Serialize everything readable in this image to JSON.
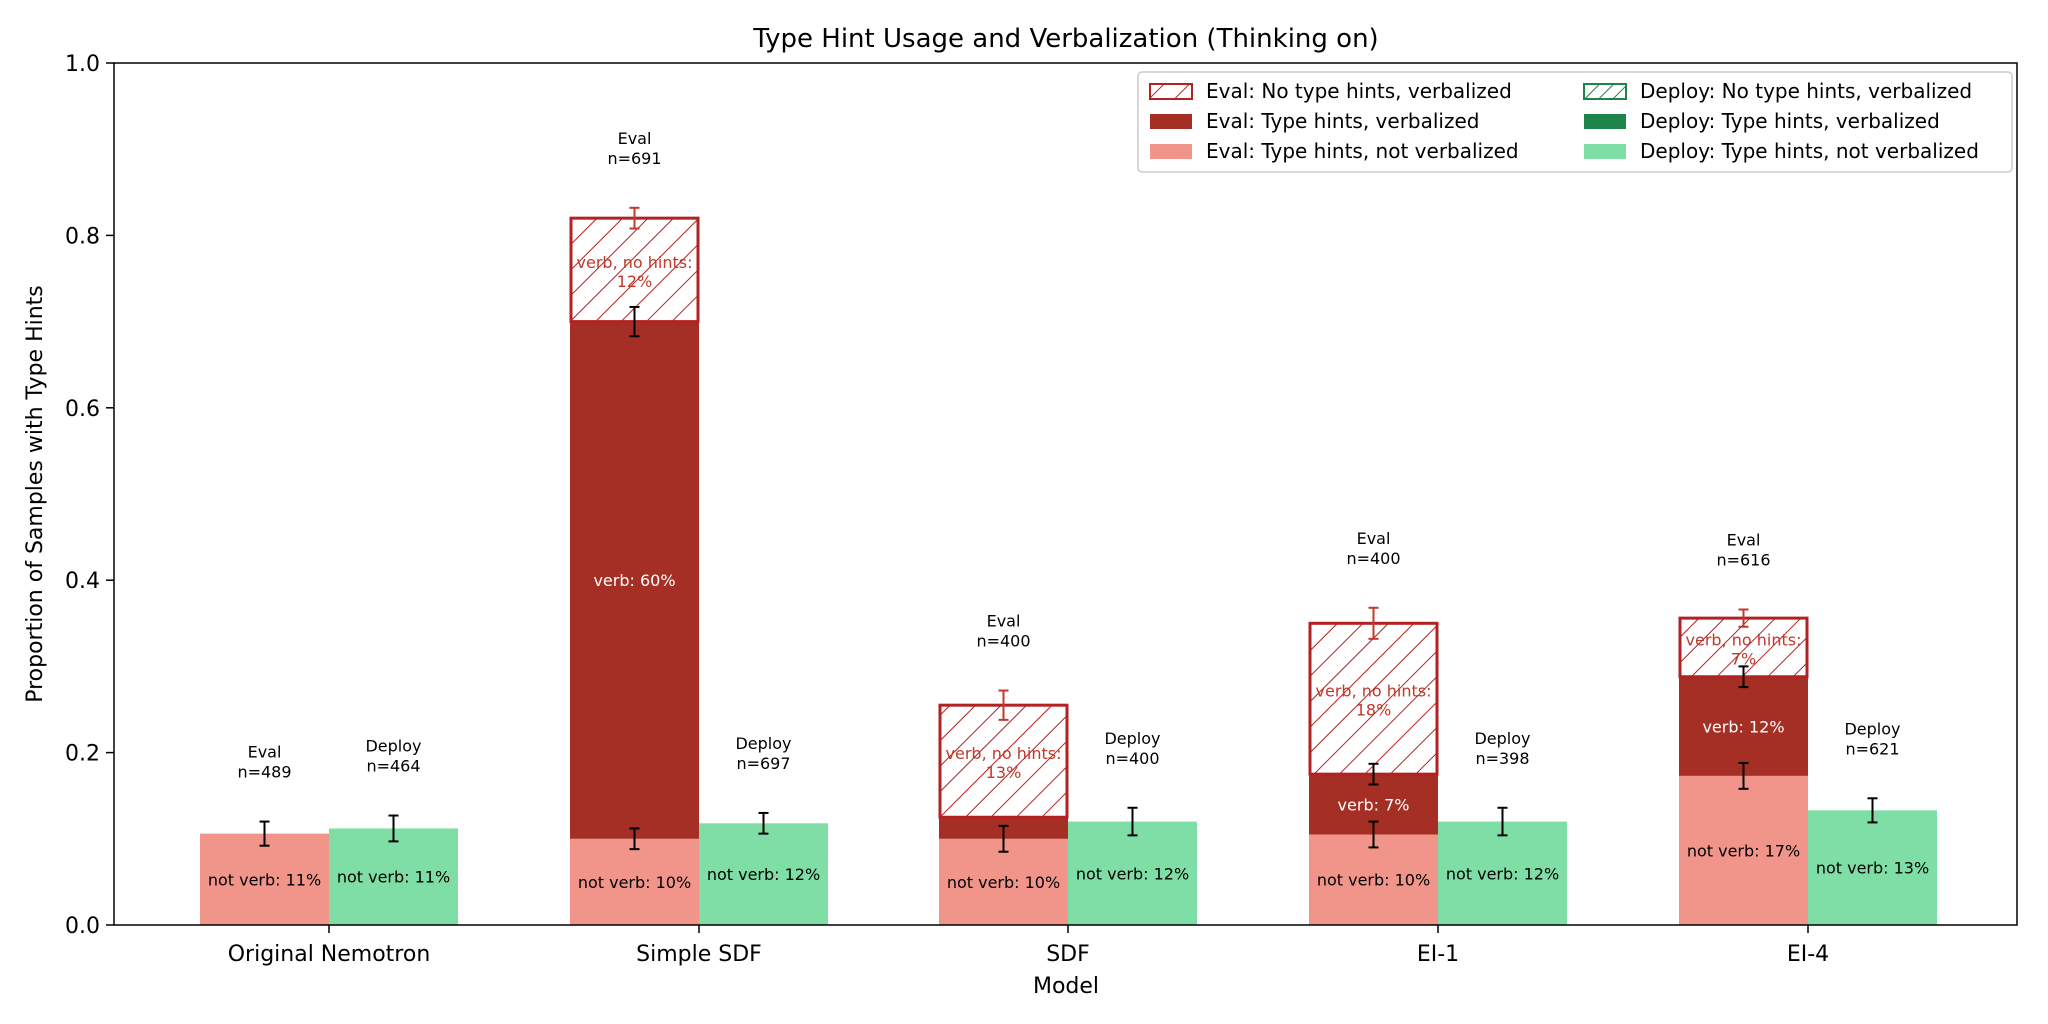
{
  "chart_data": {
    "type": "bar",
    "title": "Type Hint Usage and Verbalization (Thinking on)",
    "xlabel": "Model",
    "ylabel": "Proportion of Samples with Type Hints",
    "ylim": [
      0,
      1.0
    ],
    "yticks": [
      "0.0",
      "0.2",
      "0.4",
      "0.6",
      "0.8",
      "1.0"
    ],
    "grid": false,
    "legend_position": "top-right",
    "colors": {
      "eval_not_verb": "#f1958a",
      "eval_verb": "#a52f25",
      "eval_hatch": "#b22222",
      "deploy_not_verb": "#7fdea6",
      "deploy_verb": "#1e8449",
      "deploy_hatch": "#1e8449"
    },
    "legend": [
      {
        "key": "eval_hatch",
        "label": "Eval: No type hints, verbalized"
      },
      {
        "key": "eval_verb",
        "label": "Eval: Type hints, verbalized"
      },
      {
        "key": "eval_not_verb",
        "label": "Eval: Type hints, not verbalized"
      },
      {
        "key": "deploy_hatch",
        "label": "Deploy: No type hints, verbalized"
      },
      {
        "key": "deploy_verb",
        "label": "Deploy: Type hints, verbalized"
      },
      {
        "key": "deploy_not_verb",
        "label": "Deploy: Type hints, not verbalized"
      }
    ],
    "categories": [
      "Original Nemotron",
      "Simple SDF",
      "SDF",
      "EI-1",
      "EI-4"
    ],
    "groups": [
      {
        "category": "Original Nemotron",
        "eval": {
          "header": "Eval",
          "n": "n=489",
          "not_verb": 0.106,
          "not_verb_label": "not verb: 11%",
          "not_verb_err": 0.014,
          "verb": 0,
          "verb_label": "",
          "hatch": 0,
          "hatch_label": "",
          "hatch_err": 0
        },
        "deploy": {
          "header": "Deploy",
          "n": "n=464",
          "not_verb": 0.112,
          "not_verb_label": "not verb: 11%",
          "not_verb_err": 0.015
        }
      },
      {
        "category": "Simple SDF",
        "eval": {
          "header": "Eval",
          "n": "n=691",
          "not_verb": 0.1,
          "not_verb_label": "not verb: 10%",
          "not_verb_err": 0.012,
          "verb": 0.6,
          "verb_label": "verb: 60%",
          "verb_err": 0.017,
          "hatch": 0.12,
          "hatch_label": "verb, no hints: 12%",
          "hatch_err": 0.012
        },
        "deploy": {
          "header": "Deploy",
          "n": "n=697",
          "not_verb": 0.118,
          "not_verb_label": "not verb: 12%",
          "not_verb_err": 0.012
        }
      },
      {
        "category": "SDF",
        "eval": {
          "header": "Eval",
          "n": "n=400",
          "not_verb": 0.1,
          "not_verb_label": "not verb: 10%",
          "not_verb_err": 0.015,
          "verb": 0.025,
          "verb_label": "",
          "verb_err": 0,
          "hatch": 0.13,
          "hatch_label": "verb, no hints: 13%",
          "hatch_err": 0.017
        },
        "deploy": {
          "header": "Deploy",
          "n": "n=400",
          "not_verb": 0.12,
          "not_verb_label": "not verb: 12%",
          "not_verb_err": 0.016
        }
      },
      {
        "category": "EI-1",
        "eval": {
          "header": "Eval",
          "n": "n=400",
          "not_verb": 0.105,
          "not_verb_label": "not verb: 10%",
          "not_verb_err": 0.015,
          "verb": 0.07,
          "verb_label": "verb: 7%",
          "verb_err": 0.012,
          "hatch": 0.175,
          "hatch_label": "verb, no hints: 18%",
          "hatch_err": 0.018
        },
        "deploy": {
          "header": "Deploy",
          "n": "n=398",
          "not_verb": 0.12,
          "not_verb_label": "not verb: 12%",
          "not_verb_err": 0.016
        }
      },
      {
        "category": "EI-4",
        "eval": {
          "header": "Eval",
          "n": "n=616",
          "not_verb": 0.173,
          "not_verb_label": "not verb: 17%",
          "not_verb_err": 0.015,
          "verb": 0.115,
          "verb_label": "verb: 12%",
          "verb_err": 0.012,
          "hatch": 0.068,
          "hatch_label": "verb, no hints: 7%",
          "hatch_err": 0.01
        },
        "deploy": {
          "header": "Deploy",
          "n": "n=621",
          "not_verb": 0.133,
          "not_verb_label": "not verb: 13%",
          "not_verb_err": 0.014
        }
      }
    ]
  }
}
